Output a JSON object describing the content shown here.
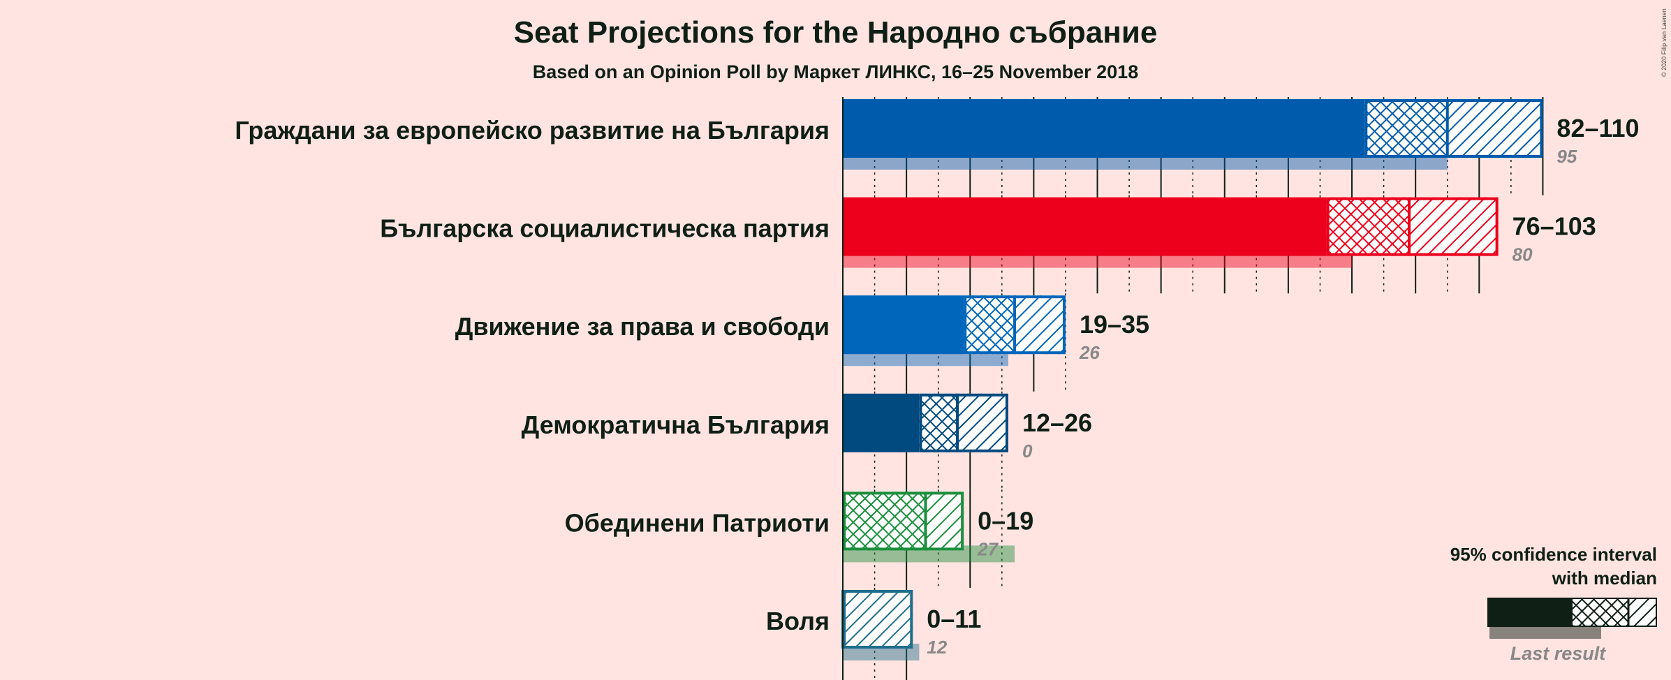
{
  "title": "Seat Projections for the Народно събрание",
  "subtitle": "Based on an Opinion Poll by Маркет ЛИНКС, 16–25 November 2018",
  "copyright": "© 2020 Filip van Laenen",
  "legend": {
    "line1": "95% confidence interval",
    "line2": "with median",
    "last_result": "Last result",
    "color": "#0F1F15"
  },
  "chart_data": {
    "type": "bar",
    "xlim": [
      0,
      110
    ],
    "categories": [
      "Граждани за европейско развитие на България",
      "Българска социалистическа партия",
      "Движение за права и свободи",
      "Демократична България",
      "Обединени Патриоти",
      "Воля"
    ],
    "series": [
      {
        "name": "Граждани за европейско развитие на България",
        "low": 82,
        "median": 95,
        "high": 110,
        "range_label": "82–110",
        "last_result": 95,
        "last_label": "95",
        "color": "#005BAC"
      },
      {
        "name": "Българска социалистическа партия",
        "low": 76,
        "median": 89,
        "high": 103,
        "range_label": "76–103",
        "last_result": 80,
        "last_label": "80",
        "color": "#ED001C"
      },
      {
        "name": "Движение за права и свободи",
        "low": 19,
        "median": 27,
        "high": 35,
        "range_label": "19–35",
        "last_result": 26,
        "last_label": "26",
        "color": "#0066BB"
      },
      {
        "name": "Демократична България",
        "low": 12,
        "median": 18,
        "high": 26,
        "range_label": "12–26",
        "last_result": 0,
        "last_label": "0",
        "color": "#004A80"
      },
      {
        "name": "Обединени Патриоти",
        "low": 0,
        "median": 13,
        "high": 19,
        "range_label": "0–19",
        "last_result": 27,
        "last_label": "27",
        "color": "#1A8F3C"
      },
      {
        "name": "Воля",
        "low": 0,
        "median": 0,
        "high": 11,
        "range_label": "0–11",
        "last_result": 12,
        "last_label": "12",
        "color": "#1F6E8C"
      }
    ]
  }
}
